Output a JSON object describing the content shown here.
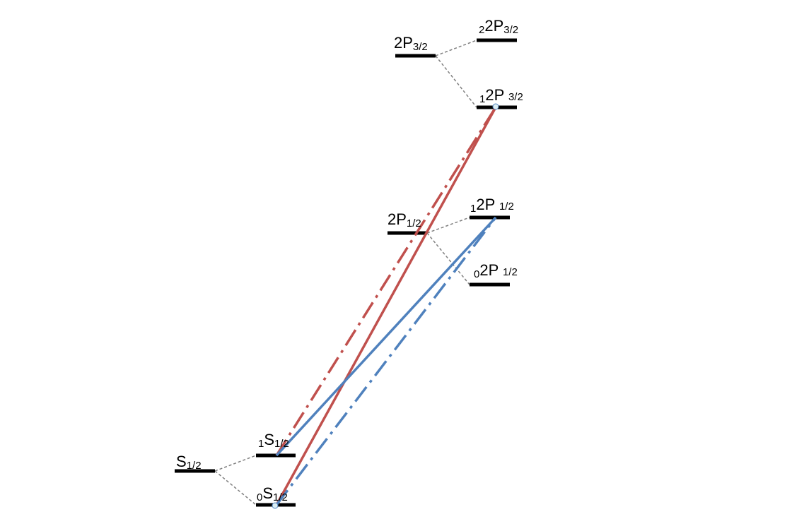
{
  "colors": {
    "background": "#ffffff",
    "level_bar": "#000000",
    "connector": "#7f7f7f",
    "red_transition": "#c0504d",
    "blue_transition": "#4f81bd",
    "marker_fill": "#dbeef4"
  },
  "levels": {
    "s_half": {
      "main": "S",
      "sub": "1/2"
    },
    "s_half_f0": {
      "pre": "0",
      "main": "S",
      "sub": "1/2"
    },
    "s_half_f1": {
      "pre": "1",
      "main": "S",
      "sub": "1/2"
    },
    "p_half": {
      "main": "2P",
      "sub": "1/2"
    },
    "p_half_f0": {
      "pre": "0",
      "main": "2P ",
      "sub": "1/2"
    },
    "p_half_f1": {
      "pre": "1",
      "main": "2P ",
      "sub": "1/2"
    },
    "p_three_half": {
      "main": "2P",
      "sub": "3/2"
    },
    "p_three_half_f1": {
      "pre": "1",
      "main": "2P ",
      "sub": "3/2"
    },
    "p_three_half_f2": {
      "pre": "2",
      "main": "2P",
      "sub": "3/2"
    }
  },
  "transitions": [
    {
      "from": "s_half_f0",
      "to": "p_three_half_f1",
      "color": "red",
      "style": "solid"
    },
    {
      "from": "s_half_f1",
      "to": "p_three_half_f1",
      "color": "red",
      "style": "dash-dot"
    },
    {
      "from": "s_half_f1",
      "to": "p_half_f1",
      "color": "blue",
      "style": "solid"
    },
    {
      "from": "s_half_f0",
      "to": "p_half_f1",
      "color": "blue",
      "style": "dash-dot"
    }
  ]
}
